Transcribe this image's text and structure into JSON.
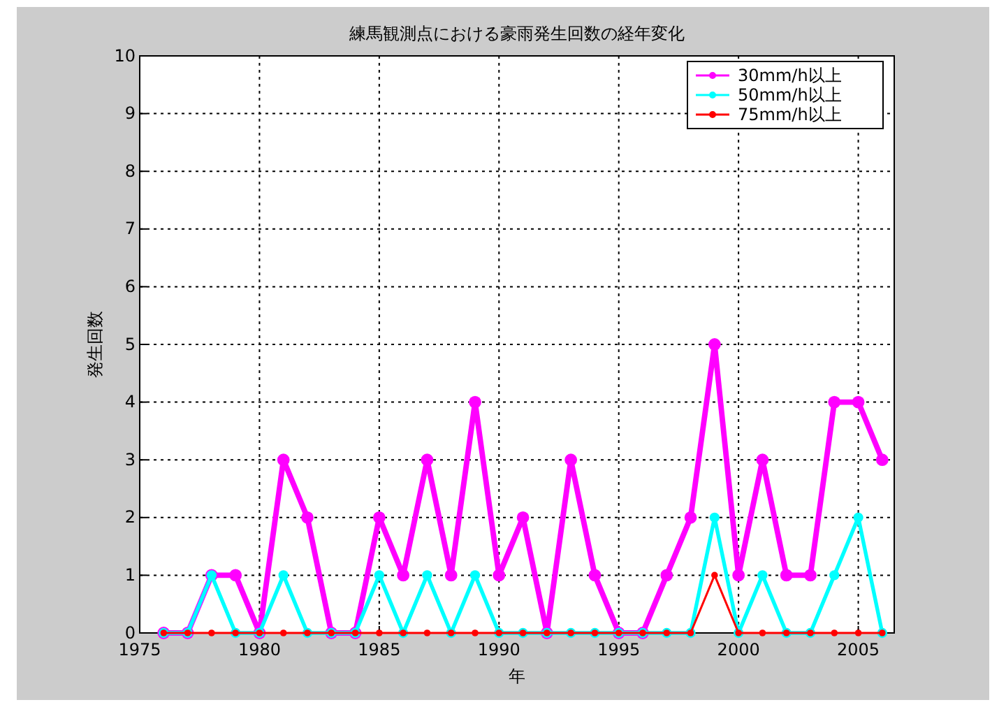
{
  "chart_data": {
    "type": "line",
    "title": "練馬観測点における豪雨発生回数の経年変化",
    "xlabel": "年",
    "ylabel": "発生回数",
    "x": [
      1976,
      1977,
      1978,
      1979,
      1980,
      1981,
      1982,
      1983,
      1984,
      1985,
      1986,
      1987,
      1988,
      1989,
      1990,
      1991,
      1992,
      1993,
      1994,
      1995,
      1996,
      1997,
      1998,
      1999,
      2000,
      2001,
      2002,
      2003,
      2004,
      2005,
      2006
    ],
    "series": [
      {
        "name": "30mm/h以上",
        "color": "#ff00ff",
        "values": [
          0,
          0,
          1,
          1,
          0,
          3,
          2,
          0,
          0,
          2,
          1,
          3,
          1,
          4,
          1,
          2,
          0,
          3,
          1,
          0,
          0,
          1,
          2,
          5,
          1,
          3,
          1,
          1,
          4,
          4,
          3
        ]
      },
      {
        "name": "50mm/h以上",
        "color": "#00ffff",
        "values": [
          0,
          0,
          1,
          0,
          0,
          1,
          0,
          0,
          0,
          1,
          0,
          1,
          0,
          1,
          0,
          0,
          0,
          0,
          0,
          0,
          0,
          0,
          0,
          2,
          0,
          1,
          0,
          0,
          1,
          2,
          0
        ]
      },
      {
        "name": "75mm/h以上",
        "color": "#ff0000",
        "values": [
          0,
          0,
          0,
          0,
          0,
          0,
          0,
          0,
          0,
          0,
          0,
          0,
          0,
          0,
          0,
          0,
          0,
          0,
          0,
          0,
          0,
          0,
          0,
          1,
          0,
          0,
          0,
          0,
          0,
          0,
          0
        ]
      }
    ],
    "xlim": [
      1975,
      2006.5
    ],
    "xticks": [
      1975,
      1980,
      1985,
      1990,
      1995,
      2000,
      2005
    ],
    "ylim": [
      0,
      10
    ],
    "yticks": [
      0,
      1,
      2,
      3,
      4,
      5,
      6,
      7,
      8,
      9,
      10
    ],
    "grid": true,
    "legend": "top right",
    "marker": "circle",
    "line_style": "solid"
  }
}
